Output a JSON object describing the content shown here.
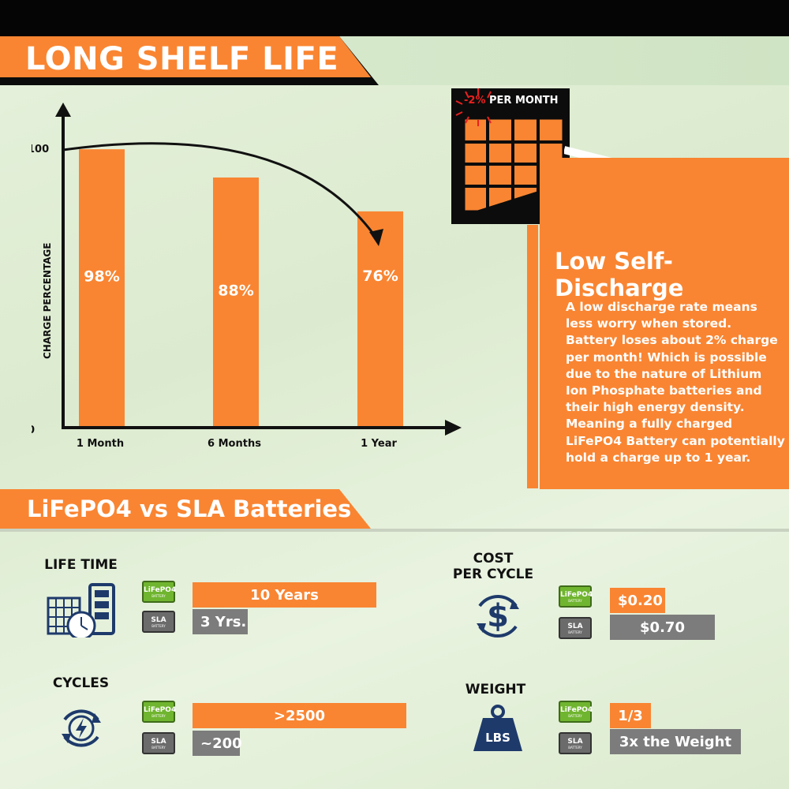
{
  "banner": {
    "title": "LONG SHELF LIFE"
  },
  "chart_data": {
    "type": "bar",
    "categories": [
      "1 Month",
      "6 Months",
      "1 Year"
    ],
    "values": [
      98,
      88,
      76
    ],
    "value_labels": [
      "98%",
      "88%",
      "76%"
    ],
    "ylabel": "CHARGE PERCENTAGE",
    "yticks": [
      "100",
      "0"
    ],
    "ylim": [
      0,
      100
    ],
    "bar_color": "#f98532"
  },
  "calendar": {
    "rate": "-2%",
    "label": "PER MONTH"
  },
  "info": {
    "title": "Low Self-Discharge",
    "body": "A low discharge rate means less worry when stored. Battery loses about 2% charge per month! Which is possible due to the nature of Lithium Ion Phosphate batteries and their high energy density. Meaning a fully charged LiFePO4 Battery can potentially hold a charge up to 1 year."
  },
  "comparison": {
    "title": "LiFePO4 vs SLA Batteries",
    "battery_labels": {
      "lifepo4": "LiFePO4",
      "lifepo4_sub": "BATTERY",
      "sla": "SLA",
      "sla_sub": "BATTERY"
    },
    "life_time": {
      "label": "LIFE TIME",
      "lifepo4": "10 Years",
      "sla": "3 Yrs."
    },
    "cost": {
      "label_line1": "COST",
      "label_line2": "PER CYCLE",
      "lifepo4": "$0.20",
      "sla": "$0.70",
      "icon_text": "$"
    },
    "cycles": {
      "label": "CYCLES",
      "lifepo4": ">2500",
      "sla": "~200"
    },
    "weight": {
      "label": "WEIGHT",
      "lifepo4": "1/3",
      "sla": "3x the Weight",
      "icon_text": "LBS"
    }
  },
  "colors": {
    "orange": "#f98532",
    "gray": "#7c7c7c",
    "navy": "#1e3a6b",
    "green": "#70b52f"
  }
}
